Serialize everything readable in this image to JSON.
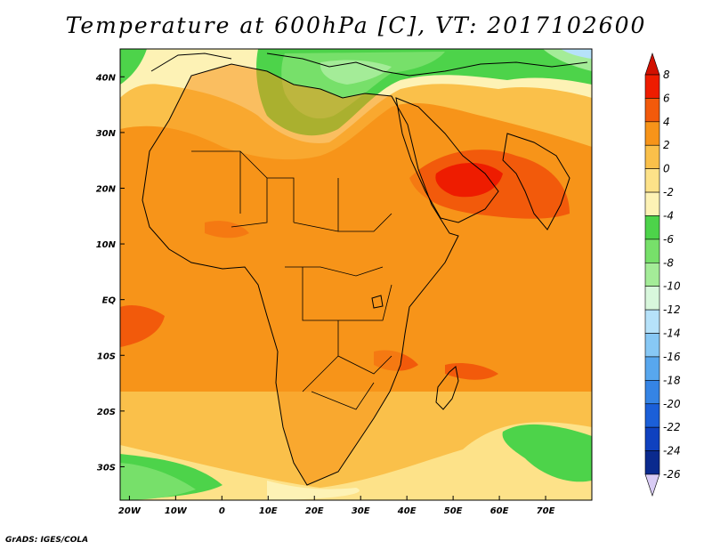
{
  "title": "Temperature at 600hPa [C], VT: 2017102600",
  "credit": "GrADS: IGES/COLA",
  "map": {
    "lon_range": [
      -22,
      80
    ],
    "lat_range": [
      -36,
      45
    ],
    "lat_ticks": [
      {
        "lat": 40,
        "label": "40N"
      },
      {
        "lat": 30,
        "label": "30N"
      },
      {
        "lat": 20,
        "label": "20N"
      },
      {
        "lat": 10,
        "label": "10N"
      },
      {
        "lat": 0,
        "label": "EQ"
      },
      {
        "lat": -10,
        "label": "10S"
      },
      {
        "lat": -20,
        "label": "20S"
      },
      {
        "lat": -30,
        "label": "30S"
      }
    ],
    "lon_ticks": [
      {
        "lon": -20,
        "label": "20W"
      },
      {
        "lon": -10,
        "label": "10W"
      },
      {
        "lon": 0,
        "label": "0"
      },
      {
        "lon": 10,
        "label": "10E"
      },
      {
        "lon": 20,
        "label": "20E"
      },
      {
        "lon": 30,
        "label": "30E"
      },
      {
        "lon": 40,
        "label": "40E"
      },
      {
        "lon": 50,
        "label": "50E"
      },
      {
        "lon": 60,
        "label": "60E"
      },
      {
        "lon": 70,
        "label": "70E"
      }
    ]
  },
  "colorbar": {
    "labels": [
      "8",
      "6",
      "4",
      "2",
      "0",
      "-2",
      "-4",
      "-6",
      "-8",
      "-10",
      "-12",
      "-14",
      "-16",
      "-18",
      "-20",
      "-22",
      "-24",
      "-26"
    ],
    "colors": [
      "#ee1c00",
      "#f25a0b",
      "#f79419",
      "#fac04a",
      "#fde289",
      "#fdf2b5",
      "#4dd34a",
      "#77e06a",
      "#a4ec98",
      "#d8f7dc",
      "#b6e2fa",
      "#87c8f5",
      "#58a7ee",
      "#3584e5",
      "#1b5fd8",
      "#0f41bf",
      "#0a2a8e"
    ],
    "top_arrow_color": "#d21000",
    "bottom_arrow_color": "#d9ccf5"
  }
}
